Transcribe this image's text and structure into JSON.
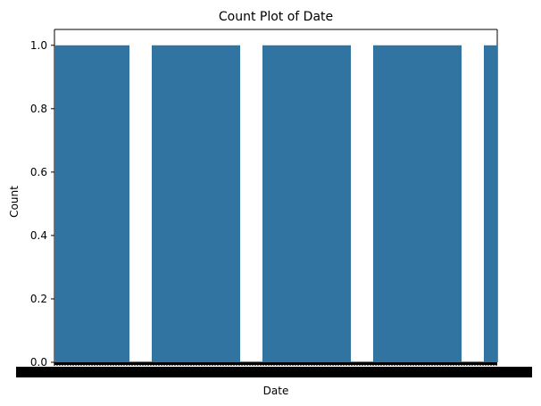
{
  "chart_data": {
    "type": "bar",
    "title": "Count Plot of Date",
    "xlabel": "Date",
    "ylabel": "Count",
    "ylim": [
      0,
      1.05
    ],
    "yticks": [
      "0.0",
      "0.2",
      "0.4",
      "0.6",
      "0.8",
      "1.0"
    ],
    "values": [
      1,
      1,
      1,
      1,
      1
    ],
    "bar_color": "#3274a1",
    "x_tick_labels": "overlapping and unreadable",
    "grid": false,
    "legend": false
  }
}
